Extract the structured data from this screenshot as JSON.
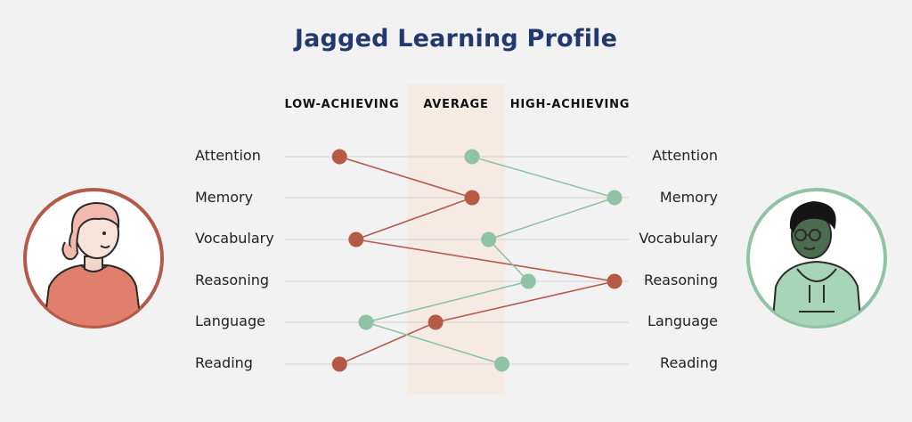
{
  "title": "Jagged Learning Profile",
  "columns": [
    "LOW-ACHIEVING",
    "AVERAGE",
    "HIGH-ACHIEVING"
  ],
  "colors": {
    "title": "#22386e",
    "student_a": "#b55a46",
    "student_b": "#8fc2a6",
    "average_band": "#f6ebe4",
    "avatar_a_skin": "#e07f6c",
    "avatar_b_hoodie": "#a8d4b8"
  },
  "icons": [
    "girl-avatar-icon",
    "boy-avatar-icon"
  ],
  "chart_data": {
    "type": "line",
    "categories": [
      "Attention",
      "Memory",
      "Vocabulary",
      "Reasoning",
      "Language",
      "Reading"
    ],
    "x_scale": [
      "LOW-ACHIEVING",
      "AVERAGE",
      "HIGH-ACHIEVING"
    ],
    "series": [
      {
        "values": [
          0.17,
          0.57,
          0.22,
          1.0,
          0.46,
          0.17
        ]
      },
      {
        "values": [
          0.57,
          1.0,
          0.62,
          0.74,
          0.25,
          0.66
        ]
      }
    ]
  }
}
